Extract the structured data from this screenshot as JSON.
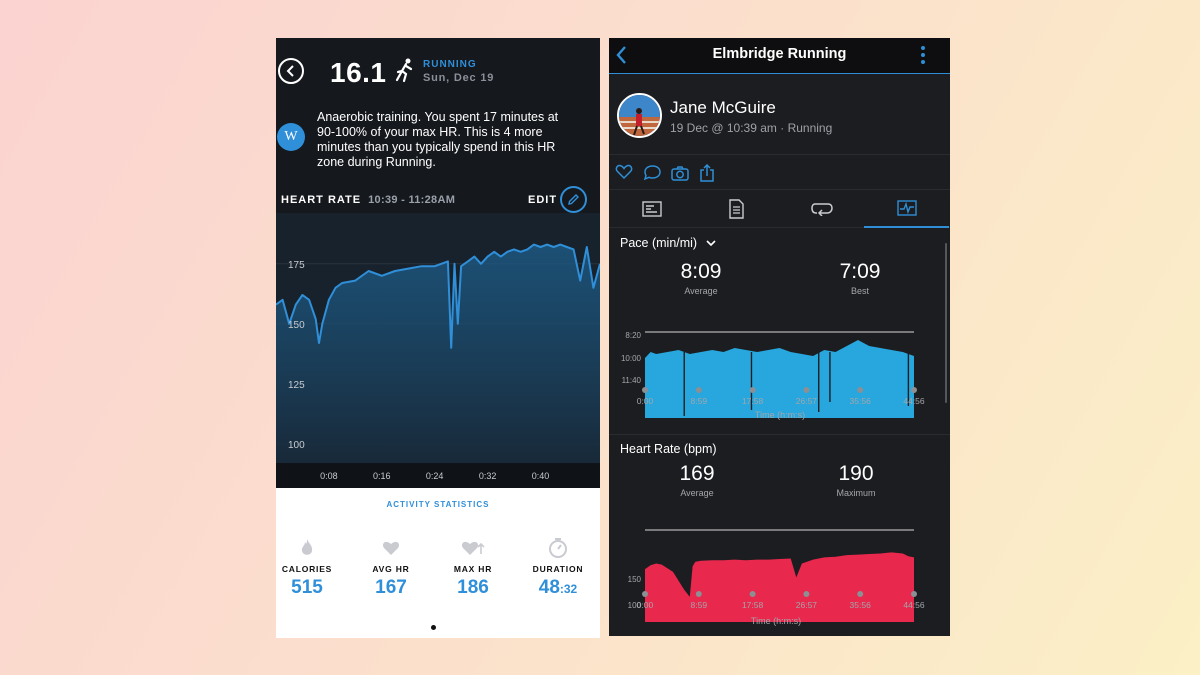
{
  "left": {
    "score": "16.1",
    "sport": "RUNNING",
    "date": "Sun, Dec 19",
    "badge_letter": "W",
    "insight": "Anaerobic training. You spent 17 minutes at 90-100% of your max HR. This is 4 more minutes than you typically spend in this HR zone during Running.",
    "hr_title": "HEART RATE",
    "hr_range": "10:39 - 11:28AM",
    "edit_label": "EDIT",
    "stats_title": "ACTIVITY STATISTICS",
    "stats": [
      {
        "label": "CALORIES",
        "value": "515",
        "icon": "flame-icon"
      },
      {
        "label": "AVG HR",
        "value": "167",
        "icon": "heart-icon"
      },
      {
        "label": "MAX HR",
        "value": "186",
        "icon": "heart-up-icon"
      },
      {
        "label": "DURATION",
        "value": "48",
        "value_small": ":32",
        "icon": "stopwatch-icon"
      }
    ],
    "colors": {
      "accent": "#2f8fd9",
      "background": "#15181d"
    }
  },
  "right": {
    "title": "Elmbridge Running",
    "user_name": "Jane McGuire",
    "meta": "19 Dec @ 10:39 am · Running",
    "pace_title": "Pace (min/mi)",
    "pace_average": "8:09",
    "pace_average_label": "Average",
    "pace_best": "7:09",
    "pace_best_label": "Best",
    "hr_title": "Heart Rate (bpm)",
    "hr_average": "169",
    "hr_average_label": "Average",
    "hr_max": "190",
    "hr_max_label": "Maximum",
    "time_axis_label": "Time (h:m:s)",
    "colors": {
      "pace": "#27a7dd",
      "heart_rate": "#e8284d",
      "accent": "#2e8fd6"
    }
  },
  "chart_data": [
    {
      "type": "area",
      "title": "HEART RATE",
      "xlabel": "",
      "ylabel": "",
      "x_ticks": [
        "0:08",
        "0:16",
        "0:24",
        "0:32",
        "0:40"
      ],
      "y_ticks": [
        "175",
        "150",
        "125",
        "100"
      ],
      "ylim": [
        92,
        192
      ],
      "xlim": [
        0,
        49
      ],
      "x": [
        0,
        1,
        2,
        3,
        4,
        5,
        6,
        6.5,
        7,
        8,
        9,
        10,
        12,
        14,
        16,
        18,
        20,
        22,
        24,
        25,
        26,
        26.5,
        27,
        27.5,
        28,
        29,
        30,
        31,
        32,
        33,
        34,
        35,
        36,
        37,
        38,
        39,
        40,
        41,
        42,
        43,
        44,
        45,
        46,
        47,
        48,
        49
      ],
      "y": [
        158,
        160,
        150,
        158,
        162,
        160,
        152,
        142,
        150,
        160,
        165,
        167,
        168,
        172,
        170,
        172,
        173,
        174,
        174,
        175,
        176,
        140,
        175,
        150,
        174,
        176,
        178,
        175,
        178,
        180,
        178,
        180,
        181,
        180,
        181,
        183,
        182,
        183,
        182,
        183,
        182,
        181,
        168,
        182,
        165,
        175
      ],
      "grid": true,
      "color": "#2f8fd9"
    },
    {
      "type": "area",
      "title": "Pace (min/mi)",
      "xlabel": "Time (h:m:s)",
      "ylabel": "",
      "x_ticks": [
        "0:00",
        "8:59",
        "17:58",
        "26:57",
        "35:56",
        "44:56"
      ],
      "y_ticks": [
        "8:20",
        "10:00",
        "11:40"
      ],
      "x": [
        0,
        1,
        2,
        4,
        6,
        8,
        10,
        12,
        14,
        16,
        18,
        20,
        22,
        24,
        26,
        28,
        30,
        32,
        34,
        36,
        38,
        40,
        42,
        44,
        46,
        48
      ],
      "y": [
        8.6,
        8.3,
        8.4,
        8.3,
        8.2,
        8.4,
        8.3,
        8.2,
        8.3,
        8.1,
        8.2,
        8.3,
        8.2,
        8.1,
        8.3,
        8.4,
        8.5,
        8.2,
        8.3,
        8.0,
        7.7,
        8.0,
        8.1,
        8.2,
        8.3,
        8.5
      ],
      "dips": [
        {
          "x": 7,
          "y": 11.5
        },
        {
          "x": 19,
          "y": 11.2
        },
        {
          "x": 31,
          "y": 11.3
        },
        {
          "x": 33,
          "y": 10.8
        },
        {
          "x": 47,
          "y": 11.0
        }
      ],
      "color": "#27a7dd"
    },
    {
      "type": "area",
      "title": "Heart Rate (bpm)",
      "xlabel": "Time (h:m:s)",
      "ylabel": "",
      "x_ticks": [
        "0:00",
        "8:59",
        "17:58",
        "26:57",
        "35:56",
        "44:56"
      ],
      "y_ticks": [
        "150",
        "100"
      ],
      "x": [
        0,
        1,
        2,
        3,
        5,
        7,
        8,
        8.5,
        9,
        10,
        12,
        14,
        16,
        18,
        20,
        22,
        24,
        26,
        27,
        28,
        30,
        32,
        34,
        36,
        38,
        40,
        42,
        44,
        46,
        47,
        48
      ],
      "y": [
        155,
        162,
        165,
        163,
        150,
        118,
        105,
        160,
        168,
        170,
        171,
        171,
        172,
        171,
        172,
        172,
        173,
        174,
        140,
        165,
        172,
        176,
        177,
        180,
        181,
        182,
        183,
        185,
        183,
        178,
        176
      ],
      "color": "#e8284d"
    }
  ]
}
